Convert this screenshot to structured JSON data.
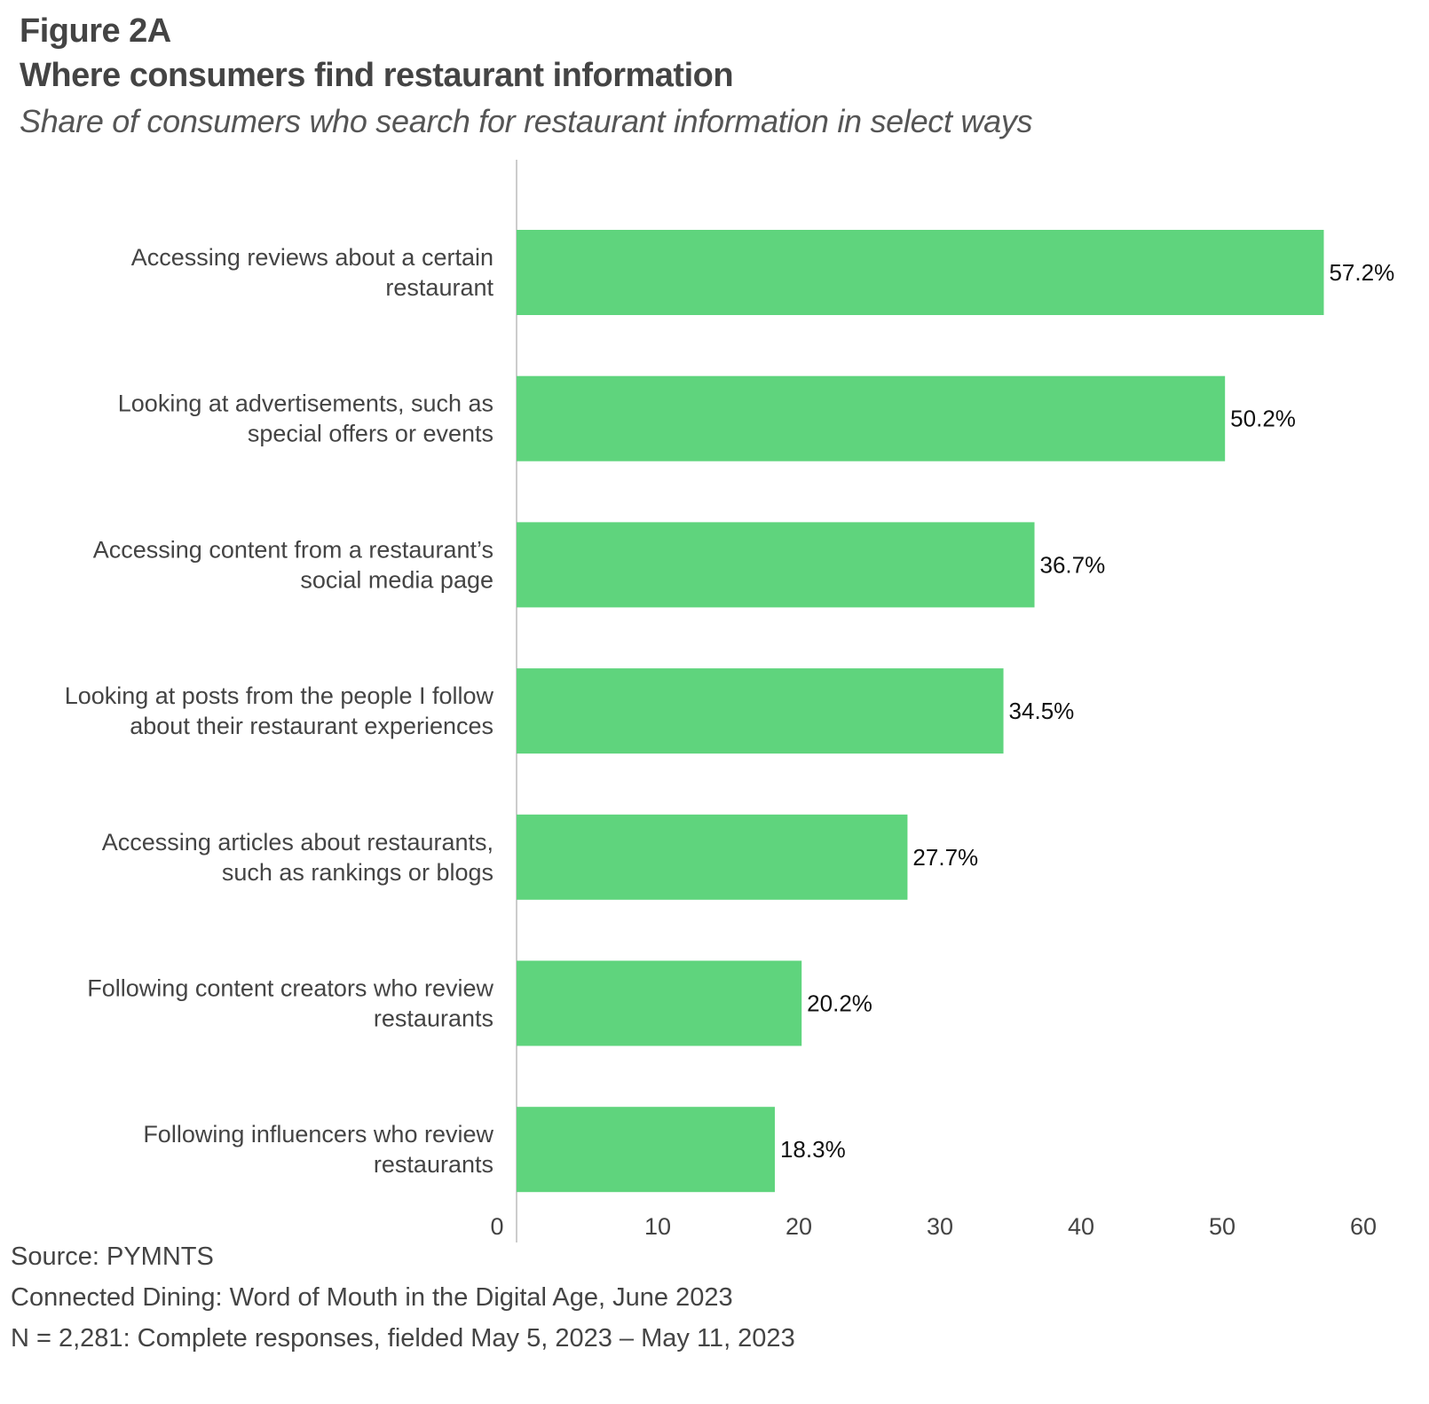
{
  "header": {
    "figure_label": "Figure 2A",
    "title": "Where consumers find restaurant information",
    "subtitle": "Share of consumers who search for restaurant information in select ways"
  },
  "chart_data": {
    "type": "bar",
    "orientation": "horizontal",
    "title": "Where consumers find restaurant information",
    "subtitle": "Share of consumers who search for restaurant information in select ways",
    "categories": [
      [
        "Accessing reviews about a certain",
        "restaurant"
      ],
      [
        "Looking at advertisements, such as",
        "special offers or events"
      ],
      [
        "Accessing content from a restaurant’s",
        "social media page"
      ],
      [
        "Looking at posts from the people I follow",
        "about their restaurant experiences"
      ],
      [
        "Accessing articles about restaurants,",
        "such as rankings or blogs"
      ],
      [
        "Following content creators who review",
        "restaurants"
      ],
      [
        "Following influencers who review",
        "restaurants"
      ]
    ],
    "values": [
      57.2,
      50.2,
      36.7,
      34.5,
      27.7,
      20.2,
      18.3
    ],
    "value_labels": [
      "57.2%",
      "50.2%",
      "36.7%",
      "34.5%",
      "27.7%",
      "20.2%",
      "18.3%"
    ],
    "xlim": [
      0,
      60
    ],
    "xticks": [
      0,
      10,
      20,
      30,
      40,
      50,
      60
    ],
    "xtick_labels": [
      "0",
      "10",
      "20",
      "30",
      "40",
      "50",
      "60"
    ],
    "grid": false,
    "legend": "none",
    "bar_color": "#5fd47d",
    "axis_color": "#cccccc"
  },
  "footer": {
    "source": "Source: PYMNTS",
    "report": "Connected Dining: Word of Mouth in the Digital Age, June 2023",
    "sample": "N = 2,281: Complete responses, fielded May 5, 2023 – May 11, 2023"
  }
}
